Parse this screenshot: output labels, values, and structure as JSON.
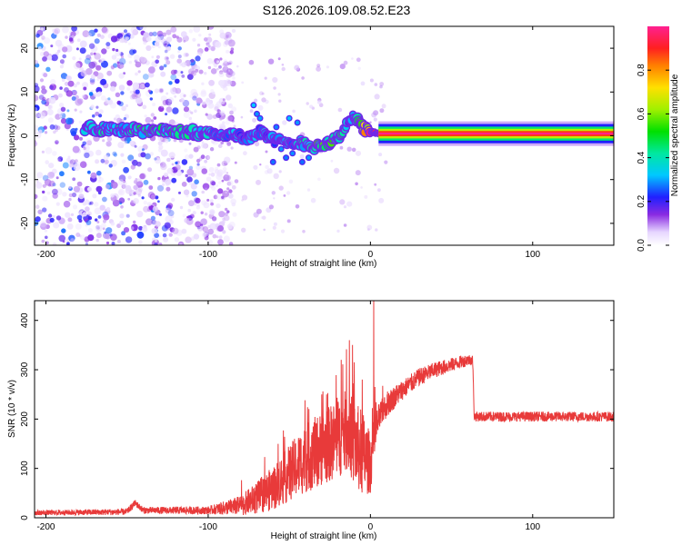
{
  "title": "S126.2026.109.08.52.E23",
  "chart_data": [
    {
      "type": "heatmap",
      "title": "S126.2026.109.08.52.E23",
      "xlabel": "Height of straight line (km)",
      "ylabel": "Frequency (Hz)",
      "xlim": [
        -207,
        150
      ],
      "ylim": [
        -25,
        25
      ],
      "xticks": [
        -200,
        -100,
        0,
        100
      ],
      "xtick_labels": [
        "-200",
        "-100",
        "0",
        "100"
      ],
      "yticks": [
        -20,
        -10,
        0,
        10,
        20
      ],
      "ytick_labels": [
        "-20",
        "-10",
        "0",
        "10",
        "20"
      ],
      "colorbar": {
        "label": "Normalized spectral amplitude",
        "range": [
          0,
          1
        ],
        "ticks": [
          0,
          0.2,
          0.4,
          0.6,
          0.8
        ],
        "tick_labels": [
          "0.0",
          "0.2",
          "0.4",
          "0.6",
          "0.8"
        ]
      },
      "ridge": {
        "x": [
          -175,
          -160,
          -140,
          -120,
          -100,
          -85,
          -75,
          -68,
          -60,
          -50,
          -42,
          -35,
          -28,
          -20,
          -14,
          -10,
          -5,
          0,
          5,
          10,
          50,
          100,
          150
        ],
        "freq": [
          1.8,
          1.5,
          1.2,
          1.0,
          0.5,
          0.2,
          -0.5,
          1.0,
          -1.0,
          -2.0,
          -1.5,
          -2.5,
          -2.0,
          -0.5,
          3.0,
          4.5,
          2.0,
          1.0,
          0.5,
          0.5,
          0.5,
          0.5,
          0.5
        ],
        "amplitude": [
          0.35,
          0.35,
          0.4,
          0.4,
          0.35,
          0.3,
          0.25,
          0.3,
          0.25,
          0.3,
          0.35,
          0.45,
          0.5,
          0.45,
          0.3,
          0.35,
          0.55,
          0.85,
          0.95,
          1.0,
          1.0,
          1.0,
          1.0
        ]
      },
      "noise_region_x": [
        -207,
        -90
      ]
    },
    {
      "type": "line",
      "xlabel": "Height of straight line (km)",
      "ylabel": "SNR (10 * v/v)",
      "xlim": [
        -207,
        150
      ],
      "ylim": [
        0,
        440
      ],
      "xticks": [
        -200,
        -100,
        0,
        100
      ],
      "xtick_labels": [
        "-200",
        "-100",
        "0",
        "100"
      ],
      "yticks": [
        0,
        100,
        200,
        300,
        400
      ],
      "ytick_labels": [
        "0",
        "100",
        "200",
        "300",
        "400"
      ],
      "color": "#e83a3a",
      "envelope": {
        "x": [
          -207,
          -150,
          -145,
          -140,
          -100,
          -80,
          -70,
          -60,
          -50,
          -40,
          -30,
          -20,
          -14,
          -10,
          -5,
          0,
          2,
          5,
          10,
          20,
          30,
          40,
          50,
          60,
          63,
          64,
          70,
          100,
          150
        ],
        "y": [
          10,
          12,
          30,
          15,
          15,
          25,
          40,
          60,
          90,
          120,
          140,
          160,
          180,
          150,
          130,
          110,
          150,
          200,
          230,
          260,
          285,
          300,
          310,
          320,
          320,
          205,
          205,
          205,
          205
        ]
      },
      "noise_amplitude": {
        "x": [
          -207,
          -100,
          -80,
          -60,
          -40,
          -20,
          -5,
          5,
          20,
          60,
          64,
          150
        ],
        "y": [
          5,
          8,
          20,
          45,
          70,
          80,
          90,
          30,
          20,
          12,
          10,
          10
        ]
      },
      "spikes": [
        {
          "x": 2,
          "y": 440
        },
        {
          "x": -13,
          "y": 360
        },
        {
          "x": -18,
          "y": 320
        },
        {
          "x": -10,
          "y": 315
        },
        {
          "x": -30,
          "y": 250
        },
        {
          "x": -40,
          "y": 175
        },
        {
          "x": -5,
          "y": 280
        }
      ]
    }
  ]
}
